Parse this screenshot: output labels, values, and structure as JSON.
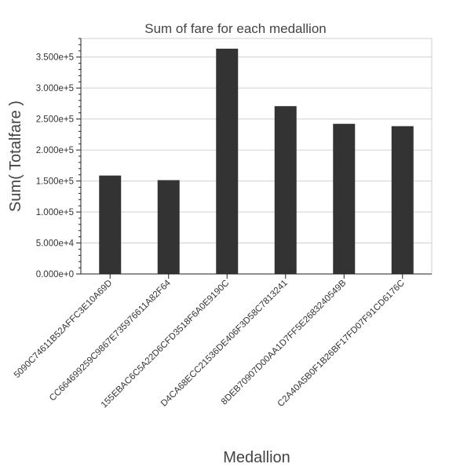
{
  "chart_data": {
    "type": "bar",
    "title": "Sum of fare for each medallion",
    "xlabel": "Medallion",
    "ylabel": "Sum( Totalfare )",
    "categories": [
      "5090C74611B52AFFC3E10A69D",
      "CC664699259C9867E73597661 1A82F64",
      "155EBAC6C5A22D6CFD3518F6A0E9190C",
      "D4CA68ECC21536DE406F3D58C7813241",
      "8DEB70907D00AA1D7FF5E2683240549B",
      "C2A40A5B0F1B26BF17FD07F91CD6176C"
    ],
    "values": [
      158800,
      151400,
      363500,
      270800,
      242300,
      238500
    ],
    "ylim": [
      0,
      380000
    ],
    "yticks": [
      "0.000e+0",
      "5.000e+4",
      "1.000e+5",
      "1.500e+5",
      "2.000e+5",
      "2.500e+5",
      "3.000e+5",
      "3.500e+5"
    ],
    "ytick_values": [
      0,
      50000,
      100000,
      150000,
      200000,
      250000,
      300000,
      350000
    ],
    "grid": true,
    "bar_color": "#333333"
  }
}
